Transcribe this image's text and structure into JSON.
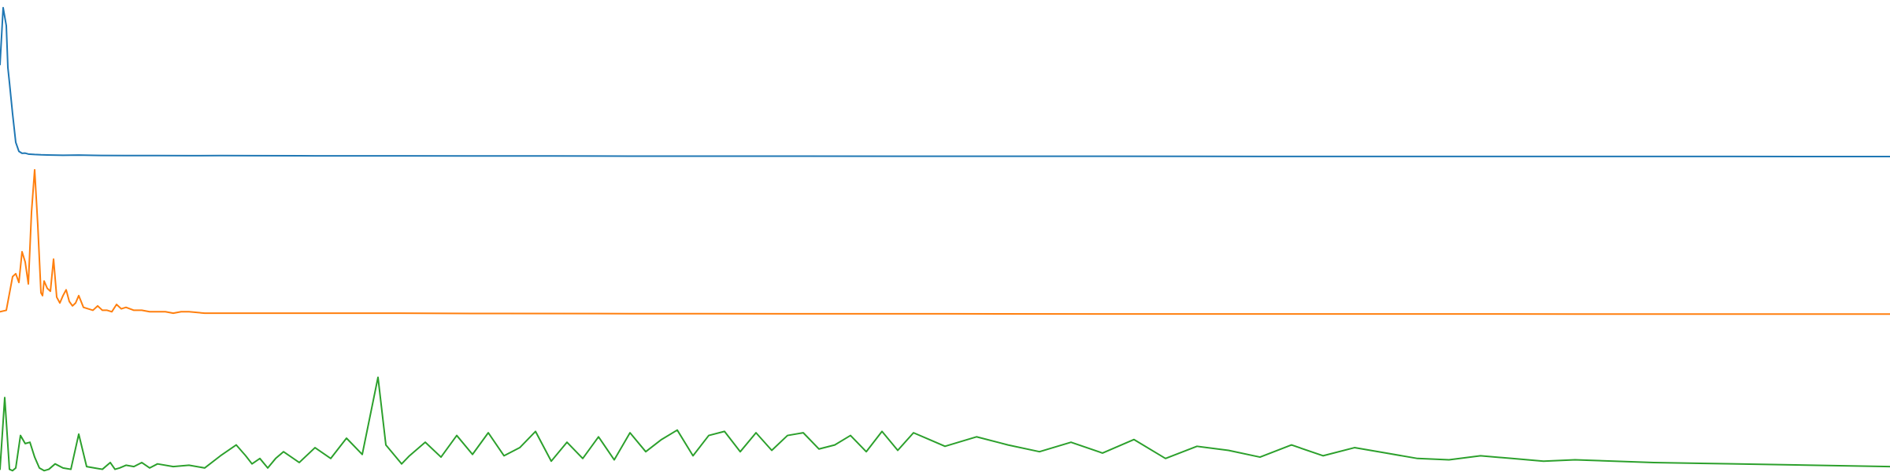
{
  "chart_data": [
    {
      "type": "line",
      "title": "",
      "xlabel": "",
      "ylabel": "",
      "grid": false,
      "legend": "none",
      "color": "#1f77b4",
      "x": [
        0,
        2,
        4,
        5,
        6,
        8,
        10,
        12,
        14,
        16,
        18,
        22,
        26,
        30,
        40,
        50,
        60,
        80,
        100,
        120,
        140,
        160,
        200,
        250,
        300,
        350,
        400,
        450,
        500,
        600,
        700,
        800,
        900,
        1000,
        1100,
        1200
      ],
      "y": [
        0.62,
        1.0,
        0.88,
        0.6,
        0.5,
        0.29,
        0.1,
        0.04,
        0.027,
        0.028,
        0.022,
        0.019,
        0.017,
        0.016,
        0.014,
        0.015,
        0.013,
        0.012,
        0.012,
        0.011,
        0.012,
        0.011,
        0.01,
        0.01,
        0.009,
        0.009,
        0.008,
        0.008,
        0.008,
        0.007,
        0.007,
        0.006,
        0.006,
        0.006,
        0.006,
        0.005
      ],
      "ylim": [
        0,
        1.02
      ]
    },
    {
      "type": "line",
      "title": "",
      "xlabel": "",
      "ylabel": "",
      "grid": false,
      "legend": "none",
      "color": "#ff7f0e",
      "x": [
        0,
        4,
        8,
        10,
        12,
        14,
        16,
        18,
        20,
        22,
        24,
        26,
        27,
        28,
        30,
        32,
        34,
        36,
        38,
        40,
        42,
        44,
        46,
        48,
        50,
        53,
        56,
        59,
        62,
        65,
        68,
        71,
        74,
        77,
        80,
        85,
        90,
        95,
        100,
        105,
        110,
        115,
        120,
        130,
        140,
        150,
        170,
        200,
        250,
        300,
        400,
        500,
        600,
        700,
        800,
        900,
        1000,
        1100,
        1200
      ],
      "y": [
        0.02,
        0.03,
        0.26,
        0.28,
        0.22,
        0.43,
        0.36,
        0.21,
        0.7,
        0.99,
        0.61,
        0.15,
        0.13,
        0.23,
        0.18,
        0.16,
        0.38,
        0.12,
        0.08,
        0.13,
        0.17,
        0.09,
        0.06,
        0.08,
        0.13,
        0.05,
        0.04,
        0.03,
        0.06,
        0.03,
        0.03,
        0.02,
        0.07,
        0.04,
        0.05,
        0.03,
        0.03,
        0.02,
        0.02,
        0.02,
        0.01,
        0.02,
        0.02,
        0.01,
        0.01,
        0.01,
        0.01,
        0.01,
        0.01,
        0.008,
        0.007,
        0.006,
        0.006,
        0.005,
        0.005,
        0.005,
        0.004,
        0.004,
        0.004
      ],
      "ylim": [
        0,
        1.0
      ]
    },
    {
      "type": "line",
      "title": "",
      "xlabel": "",
      "ylabel": "",
      "grid": false,
      "legend": "none",
      "color": "#2ca02c",
      "x": [
        0,
        3,
        6,
        8,
        10,
        13,
        16,
        19,
        22,
        25,
        28,
        31,
        35,
        40,
        45,
        50,
        55,
        60,
        65,
        70,
        73,
        76,
        80,
        85,
        90,
        95,
        100,
        110,
        120,
        130,
        140,
        150,
        156,
        160,
        165,
        170,
        175,
        180,
        190,
        200,
        210,
        220,
        230,
        240,
        245,
        250,
        255,
        260,
        270,
        280,
        290,
        300,
        310,
        320,
        330,
        340,
        350,
        360,
        370,
        380,
        390,
        400,
        410,
        420,
        430,
        440,
        450,
        460,
        470,
        480,
        490,
        500,
        510,
        520,
        530,
        540,
        550,
        560,
        570,
        580,
        590,
        600,
        620,
        640,
        660,
        680,
        700,
        720,
        740,
        760,
        780,
        800,
        820,
        840,
        860,
        880,
        900,
        920,
        940,
        960,
        980,
        1000,
        1050,
        1100,
        1150,
        1200
      ],
      "y": [
        0.02,
        0.55,
        0.02,
        0.01,
        0.03,
        0.27,
        0.21,
        0.22,
        0.11,
        0.03,
        0.01,
        0.02,
        0.06,
        0.03,
        0.02,
        0.28,
        0.04,
        0.03,
        0.02,
        0.07,
        0.02,
        0.03,
        0.05,
        0.04,
        0.07,
        0.03,
        0.06,
        0.04,
        0.05,
        0.03,
        0.12,
        0.2,
        0.12,
        0.06,
        0.1,
        0.03,
        0.1,
        0.15,
        0.07,
        0.18,
        0.1,
        0.25,
        0.13,
        0.7,
        0.2,
        0.13,
        0.06,
        0.12,
        0.22,
        0.11,
        0.27,
        0.13,
        0.29,
        0.12,
        0.18,
        0.3,
        0.08,
        0.22,
        0.1,
        0.26,
        0.09,
        0.29,
        0.15,
        0.24,
        0.31,
        0.12,
        0.27,
        0.3,
        0.15,
        0.29,
        0.16,
        0.27,
        0.29,
        0.17,
        0.2,
        0.27,
        0.15,
        0.3,
        0.16,
        0.29,
        0.24,
        0.19,
        0.26,
        0.2,
        0.15,
        0.22,
        0.14,
        0.24,
        0.1,
        0.19,
        0.16,
        0.11,
        0.2,
        0.12,
        0.18,
        0.14,
        0.1,
        0.09,
        0.12,
        0.1,
        0.08,
        0.09,
        0.07,
        0.06,
        0.05,
        0.04
      ],
      "ylim": [
        0,
        1.0
      ]
    }
  ]
}
